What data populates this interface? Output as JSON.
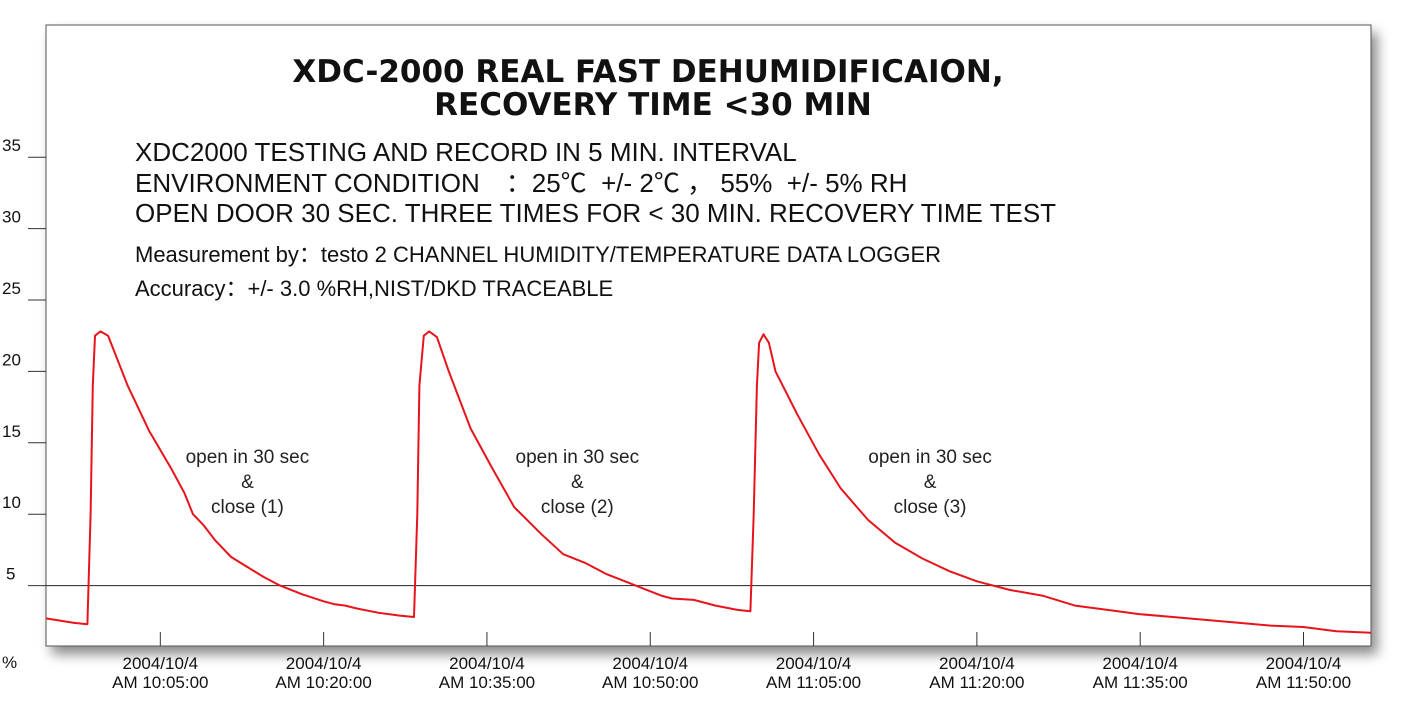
{
  "chart_data": {
    "type": "line",
    "title": [
      "XDC-2000 REAL FAST DEHUMIDIFICAION,",
      "RECOVERY TIME <30 MIN"
    ],
    "info": [
      "XDC2000 TESTING AND RECORD IN 5 MIN. INTERVAL",
      "ENVIRONMENT CONDITION　：25℃  +/- 2℃ ， 55%  +/- 5% RH",
      "OPEN DOOR 30 SEC. THREE TIMES FOR < 30 MIN. RECOVERY TIME TEST",
      "Measurement by：testo 2 CHANNEL HUMIDITY/TEMPERATURE DATA LOGGER",
      "Accuracy：+/- 3.0 %RH,NIST/DKD TRACEABLE"
    ],
    "ylabel": "%",
    "ylim": [
      0,
      35
    ],
    "yticks": [
      5,
      10,
      15,
      20,
      25,
      30,
      35
    ],
    "xlim": [
      -10.5,
      111.2
    ],
    "x_unit": "minutes after 10:05:00",
    "xticks": [
      {
        "x": 0,
        "line1": "2004/10/4",
        "line2": "AM   10:05:00"
      },
      {
        "x": 15,
        "line1": "2004/10/4",
        "line2": "AM   10:20:00"
      },
      {
        "x": 30,
        "line1": "2004/10/4",
        "line2": "AM   10:35:00"
      },
      {
        "x": 45,
        "line1": "2004/10/4",
        "line2": "AM   10:50:00"
      },
      {
        "x": 60,
        "line1": "2004/10/4",
        "line2": "AM   11:05:00"
      },
      {
        "x": 75,
        "line1": "2004/10/4",
        "line2": "AM   11:20:00"
      },
      {
        "x": 90,
        "line1": "2004/10/4",
        "line2": "AM   11:35:00"
      },
      {
        "x": 105,
        "line1": "2004/10/4",
        "line2": "AM   11:50:00"
      }
    ],
    "reference_line": {
      "y": 5
    },
    "series": [
      {
        "color": "#e8141b",
        "points": [
          [
            -10.5,
            2.7
          ],
          [
            -8,
            2.4
          ],
          [
            -6.7,
            2.3
          ],
          [
            -6.4,
            10
          ],
          [
            -6.2,
            19
          ],
          [
            -6.0,
            22.5
          ],
          [
            -5.5,
            22.8
          ],
          [
            -4.8,
            22.5
          ],
          [
            -3,
            19
          ],
          [
            -1,
            15.8
          ],
          [
            1,
            13.2
          ],
          [
            2.2,
            11.5
          ],
          [
            3,
            10.0
          ],
          [
            4,
            9.2
          ],
          [
            5,
            8.2
          ],
          [
            6.5,
            7.0
          ],
          [
            8,
            6.3
          ],
          [
            9.5,
            5.6
          ],
          [
            11,
            5.0
          ],
          [
            13,
            4.4
          ],
          [
            15,
            3.9
          ],
          [
            16,
            3.7
          ],
          [
            17,
            3.6
          ],
          [
            18,
            3.4
          ],
          [
            20,
            3.1
          ],
          [
            22,
            2.9
          ],
          [
            23.3,
            2.8
          ],
          [
            23.6,
            10
          ],
          [
            23.8,
            19
          ],
          [
            24.2,
            22.5
          ],
          [
            24.7,
            22.8
          ],
          [
            25.4,
            22.4
          ],
          [
            26.5,
            20
          ],
          [
            28.5,
            16
          ],
          [
            30.5,
            13.2
          ],
          [
            32.5,
            10.5
          ],
          [
            35,
            8.6
          ],
          [
            37,
            7.2
          ],
          [
            39,
            6.6
          ],
          [
            41,
            5.8
          ],
          [
            43,
            5.2
          ],
          [
            45,
            4.6
          ],
          [
            46,
            4.3
          ],
          [
            47,
            4.1
          ],
          [
            49,
            4.0
          ],
          [
            51,
            3.6
          ],
          [
            53,
            3.3
          ],
          [
            54.2,
            3.2
          ],
          [
            54.5,
            10
          ],
          [
            54.8,
            19
          ],
          [
            55.0,
            22.0
          ],
          [
            55.4,
            22.6
          ],
          [
            55.9,
            22.0
          ],
          [
            56.5,
            20
          ],
          [
            58.5,
            17
          ],
          [
            60.5,
            14.2
          ],
          [
            62.5,
            11.8
          ],
          [
            65,
            9.6
          ],
          [
            67.5,
            8.0
          ],
          [
            70,
            6.9
          ],
          [
            72.5,
            6.0
          ],
          [
            75,
            5.3
          ],
          [
            78,
            4.7
          ],
          [
            81,
            4.3
          ],
          [
            84,
            3.6
          ],
          [
            87,
            3.3
          ],
          [
            90,
            3.0
          ],
          [
            93,
            2.8
          ],
          [
            96,
            2.6
          ],
          [
            99,
            2.4
          ],
          [
            102,
            2.2
          ],
          [
            105,
            2.1
          ],
          [
            108,
            1.8
          ],
          [
            111.2,
            1.7
          ]
        ]
      }
    ],
    "annotations": [
      {
        "x": 8,
        "y": 13.6,
        "lines": [
          "open in 30 sec",
          "&",
          "close (1)"
        ]
      },
      {
        "x": 38.3,
        "y": 13.6,
        "lines": [
          "open in 30 sec",
          "&",
          "close (2)"
        ]
      },
      {
        "x": 70.7,
        "y": 13.6,
        "lines": [
          "open in 30 sec",
          "&",
          "close (3)"
        ]
      }
    ]
  }
}
